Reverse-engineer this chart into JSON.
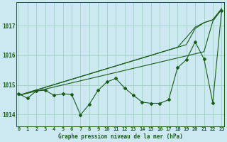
{
  "title": "Graphe pression niveau de la mer (hPa)",
  "background_color": "#cce8f0",
  "grid_color": "#99ccbb",
  "line_color": "#1a5c1a",
  "x_ticks": [
    0,
    1,
    2,
    3,
    4,
    5,
    6,
    7,
    8,
    9,
    10,
    11,
    12,
    13,
    14,
    15,
    16,
    17,
    18,
    19,
    20,
    21,
    22,
    23
  ],
  "ylim": [
    1013.6,
    1017.8
  ],
  "yticks": [
    1014,
    1015,
    1016,
    1017
  ],
  "line_straight1": [
    1014.65,
    1014.72,
    1014.79,
    1014.86,
    1014.93,
    1015.0,
    1015.07,
    1015.14,
    1015.21,
    1015.28,
    1015.35,
    1015.42,
    1015.49,
    1015.56,
    1015.63,
    1015.7,
    1015.77,
    1015.84,
    1015.91,
    1015.98,
    1016.05,
    1016.12,
    1017.15,
    1017.55
  ],
  "line_straight2": [
    1014.65,
    1014.74,
    1014.83,
    1014.92,
    1015.01,
    1015.1,
    1015.19,
    1015.28,
    1015.37,
    1015.46,
    1015.55,
    1015.64,
    1015.73,
    1015.82,
    1015.91,
    1016.0,
    1016.09,
    1016.18,
    1016.27,
    1016.36,
    1016.9,
    1017.1,
    1017.2,
    1017.55
  ],
  "line_straight3": [
    1014.65,
    1014.74,
    1014.83,
    1014.92,
    1015.01,
    1015.1,
    1015.19,
    1015.28,
    1015.37,
    1015.46,
    1015.55,
    1015.64,
    1015.73,
    1015.82,
    1015.91,
    1016.0,
    1016.09,
    1016.18,
    1016.27,
    1016.6,
    1016.95,
    1017.1,
    1017.2,
    1017.58
  ],
  "line_zigzag": [
    1014.7,
    1014.55,
    1014.8,
    1014.82,
    1014.65,
    1014.7,
    1014.68,
    1013.99,
    1014.35,
    1014.82,
    1015.1,
    1015.22,
    1014.9,
    1014.65,
    1014.42,
    1014.38,
    1014.38,
    1014.5,
    1015.58,
    1015.85,
    1016.45,
    1015.88,
    1014.4,
    1017.5
  ],
  "lw": 0.8,
  "ms": 2.0
}
